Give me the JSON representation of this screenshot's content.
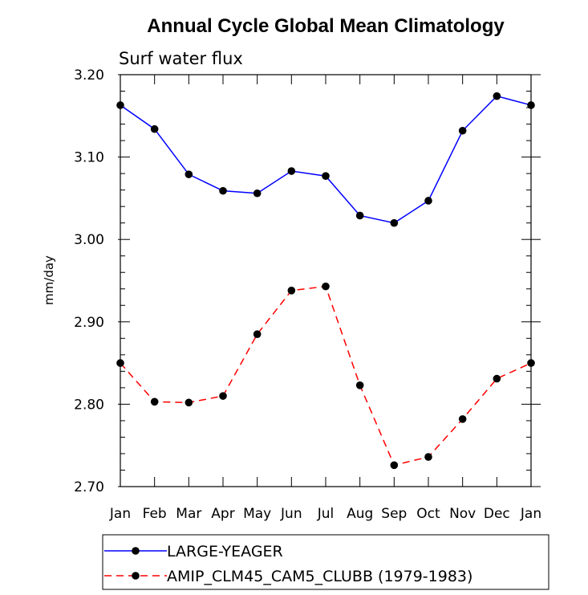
{
  "chart_data": {
    "type": "line",
    "title": "Annual Cycle Global Mean Climatology",
    "subtitle": "Surf water flux",
    "xlabel": "",
    "ylabel": "mm/day",
    "categories": [
      "Jan",
      "Feb",
      "Mar",
      "Apr",
      "May",
      "Jun",
      "Jul",
      "Aug",
      "Sep",
      "Oct",
      "Nov",
      "Dec",
      "Jan"
    ],
    "ylim": [
      2.7,
      3.2
    ],
    "yticks": [
      "2.70",
      "2.80",
      "2.90",
      "3.00",
      "3.10",
      "3.20"
    ],
    "grid": false,
    "legend_position": "bottom",
    "series": [
      {
        "name": "LARGE-YEAGER",
        "color": "#0000ff",
        "dash": "solid",
        "values": [
          3.163,
          3.134,
          3.079,
          3.059,
          3.056,
          3.083,
          3.077,
          3.029,
          3.02,
          3.047,
          3.132,
          3.174,
          3.163
        ]
      },
      {
        "name": "AMIP_CLM45_CAM5_CLUBB (1979-1983)",
        "color": "#ff0000",
        "dash": "dashed",
        "values": [
          2.85,
          2.803,
          2.802,
          2.81,
          2.885,
          2.938,
          2.943,
          2.823,
          2.726,
          2.736,
          2.782,
          2.831,
          2.85
        ]
      }
    ]
  }
}
